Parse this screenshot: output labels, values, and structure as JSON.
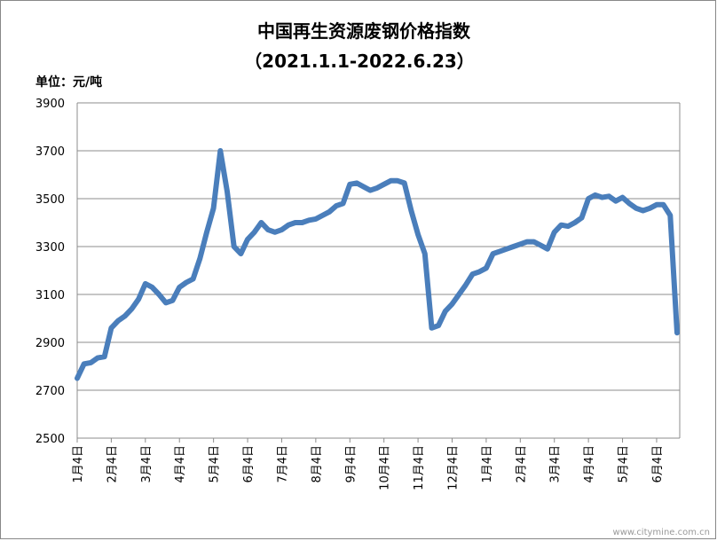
{
  "chart_data": {
    "type": "line",
    "title": "中国再生资源废钢价格指数",
    "subtitle": "（2021.1.1-2022.6.23）",
    "y_label": "单位：元/吨",
    "watermark": "www.citymine.com.cn",
    "categories": [
      "1月4日",
      null,
      null,
      null,
      null,
      "2月4日",
      null,
      null,
      null,
      null,
      "3月4日",
      null,
      null,
      null,
      null,
      "4月4日",
      null,
      null,
      null,
      null,
      "5月4日",
      null,
      null,
      null,
      null,
      "6月4日",
      null,
      null,
      null,
      null,
      "7月4日",
      null,
      null,
      null,
      null,
      "8月4日",
      null,
      null,
      null,
      null,
      "9月4日",
      null,
      null,
      null,
      null,
      "10月4日",
      null,
      null,
      null,
      null,
      "11月4日",
      null,
      null,
      null,
      null,
      "12月4日",
      null,
      null,
      null,
      null,
      "1月4日",
      null,
      null,
      null,
      null,
      "2月4日",
      null,
      null,
      null,
      null,
      "3月4日",
      null,
      null,
      null,
      null,
      "4月4日",
      null,
      null,
      null,
      null,
      "5月4日",
      null,
      null,
      null,
      null,
      "6月4日",
      null,
      null,
      null
    ],
    "series": [
      {
        "name": "废钢价格指数",
        "color": "#4a7ebb",
        "values": [
          2750,
          2810,
          2815,
          2835,
          2840,
          2960,
          2990,
          3010,
          3040,
          3080,
          3145,
          3130,
          3100,
          3065,
          3075,
          3130,
          3150,
          3165,
          3250,
          3360,
          3460,
          3700,
          3530,
          3300,
          3270,
          3330,
          3360,
          3400,
          3370,
          3360,
          3370,
          3390,
          3400,
          3400,
          3410,
          3415,
          3430,
          3445,
          3470,
          3480,
          3560,
          3565,
          3550,
          3535,
          3545,
          3560,
          3575,
          3575,
          3565,
          3450,
          3350,
          3270,
          2960,
          2970,
          3030,
          3060,
          3100,
          3140,
          3185,
          3195,
          3210,
          3270,
          3280,
          3290,
          3300,
          3310,
          3320,
          3320,
          3305,
          3290,
          3360,
          3390,
          3385,
          3400,
          3420,
          3500,
          3515,
          3505,
          3510,
          3490,
          3505,
          3480,
          3460,
          3450,
          3460,
          3475,
          3475,
          3430,
          2940
        ]
      }
    ],
    "ylim": [
      2500,
      3900
    ],
    "yticks": [
      2500,
      2700,
      2900,
      3100,
      3300,
      3500,
      3700,
      3900
    ],
    "grid": true,
    "legend": false
  }
}
